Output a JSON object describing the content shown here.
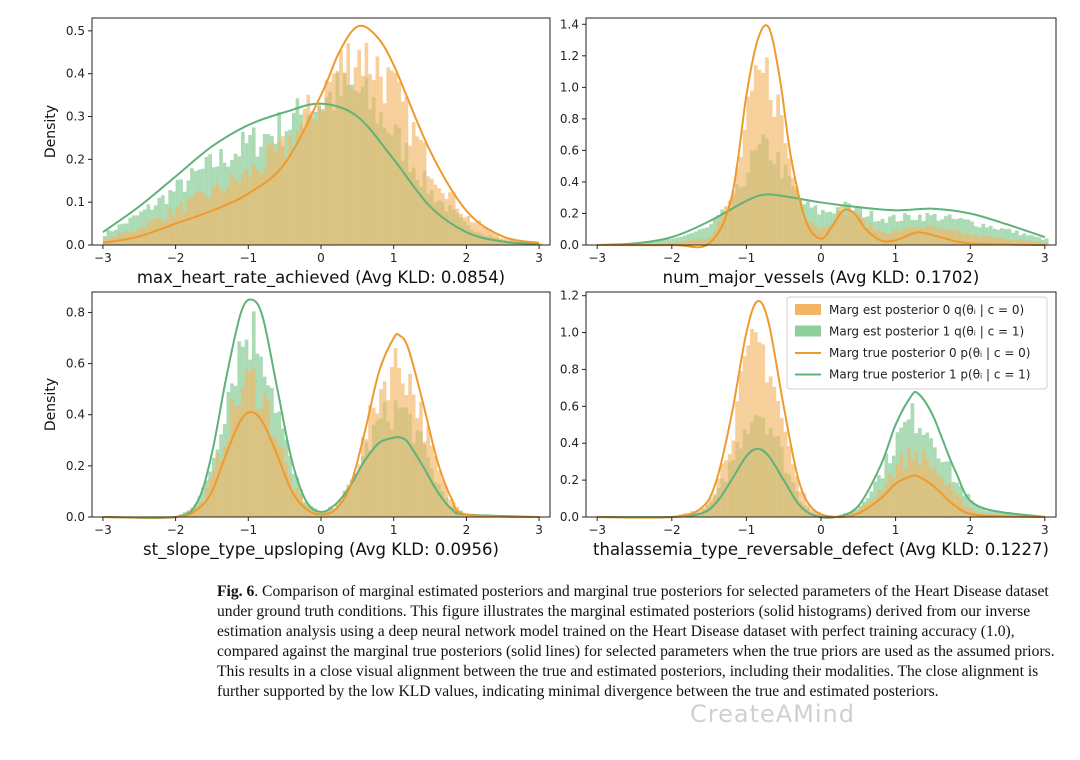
{
  "colors": {
    "orange_line": "#ef9a2d",
    "green_line": "#5fb27a",
    "orange_hist": "#f3b565",
    "green_hist": "#8fcf9c"
  },
  "legend": [
    {
      "label": "Marg est posterior 0 q(θᵢ | c = 0)",
      "kind": "patch",
      "color_key": "orange_hist"
    },
    {
      "label": "Marg est posterior 1 q(θᵢ | c = 1)",
      "kind": "patch",
      "color_key": "green_hist"
    },
    {
      "label": "Marg true posterior 0 p(θᵢ | c = 0)",
      "kind": "line",
      "color_key": "orange_line"
    },
    {
      "label": "Marg true posterior 1 p(θᵢ | c = 1)",
      "kind": "line",
      "color_key": "green_line"
    }
  ],
  "chart_data": [
    {
      "type": "line",
      "xlabel": "max_heart_rate_achieved (Avg KLD: 0.0854)",
      "ylabel": "Density",
      "xlim": [
        -3.15,
        3.15
      ],
      "ylim": [
        0,
        0.53
      ],
      "xticks": [
        "−3",
        "−2",
        "−1",
        "0",
        "1",
        "2",
        "3"
      ],
      "yticks": [
        "0.0",
        "0.1",
        "0.2",
        "0.3",
        "0.4",
        "0.5"
      ],
      "series": [
        {
          "color_key": "orange_line",
          "x": [
            -3.0,
            -2.5,
            -2.0,
            -1.5,
            -1.0,
            -0.5,
            0.0,
            0.25,
            0.5,
            0.75,
            1.0,
            1.5,
            2.0,
            2.5,
            3.0
          ],
          "y": [
            0.005,
            0.02,
            0.05,
            0.08,
            0.12,
            0.19,
            0.35,
            0.45,
            0.51,
            0.49,
            0.42,
            0.22,
            0.08,
            0.02,
            0.005
          ]
        },
        {
          "color_key": "green_line",
          "x": [
            -3.0,
            -2.5,
            -2.0,
            -1.5,
            -1.0,
            -0.5,
            0.0,
            0.5,
            1.0,
            1.5,
            2.0,
            2.5,
            3.0
          ],
          "y": [
            0.03,
            0.09,
            0.16,
            0.23,
            0.28,
            0.31,
            0.33,
            0.3,
            0.2,
            0.09,
            0.03,
            0.008,
            0.002
          ]
        }
      ]
    },
    {
      "type": "line",
      "xlabel": "num_major_vessels (Avg KLD: 0.1702)",
      "ylabel": "",
      "xlim": [
        -3.15,
        3.15
      ],
      "ylim": [
        0,
        1.44
      ],
      "xticks": [
        "−3",
        "−2",
        "−1",
        "0",
        "1",
        "2",
        "3"
      ],
      "yticks": [
        "0.0",
        "0.2",
        "0.4",
        "0.6",
        "0.8",
        "1.0",
        "1.2",
        "1.4"
      ],
      "series": [
        {
          "color_key": "orange_line",
          "x": [
            -3.0,
            -2.0,
            -1.5,
            -1.2,
            -1.0,
            -0.85,
            -0.7,
            -0.55,
            -0.4,
            -0.2,
            0.0,
            0.15,
            0.3,
            0.45,
            0.6,
            0.8,
            1.0,
            1.3,
            1.6,
            2.0,
            3.0
          ],
          "y": [
            0.0,
            0.0,
            0.01,
            0.3,
            0.95,
            1.3,
            1.38,
            1.05,
            0.55,
            0.15,
            0.04,
            0.12,
            0.22,
            0.2,
            0.1,
            0.03,
            0.03,
            0.08,
            0.05,
            0.01,
            0.0
          ]
        },
        {
          "color_key": "green_line",
          "x": [
            -3.0,
            -2.5,
            -2.0,
            -1.5,
            -1.0,
            -0.75,
            -0.5,
            0.0,
            0.5,
            1.0,
            1.5,
            2.0,
            2.5,
            3.0
          ],
          "y": [
            0.0,
            0.01,
            0.05,
            0.15,
            0.28,
            0.32,
            0.31,
            0.27,
            0.24,
            0.22,
            0.23,
            0.2,
            0.13,
            0.05
          ]
        }
      ]
    },
    {
      "type": "line",
      "xlabel": "st_slope_type_upsloping (Avg KLD: 0.0956)",
      "ylabel": "Density",
      "xlim": [
        -3.15,
        3.15
      ],
      "ylim": [
        0,
        0.88
      ],
      "xticks": [
        "−3",
        "−2",
        "−1",
        "0",
        "1",
        "2",
        "3"
      ],
      "yticks": [
        "0.0",
        "0.2",
        "0.4",
        "0.6",
        "0.8"
      ],
      "series": [
        {
          "color_key": "orange_line",
          "x": [
            -3.0,
            -2.0,
            -1.7,
            -1.5,
            -1.3,
            -1.1,
            -0.95,
            -0.8,
            -0.6,
            -0.4,
            -0.2,
            0.0,
            0.2,
            0.4,
            0.6,
            0.8,
            1.0,
            1.08,
            1.2,
            1.4,
            1.6,
            1.8,
            2.0,
            3.0
          ],
          "y": [
            0.0,
            0.0,
            0.03,
            0.1,
            0.25,
            0.38,
            0.41,
            0.37,
            0.24,
            0.1,
            0.03,
            0.01,
            0.03,
            0.12,
            0.33,
            0.57,
            0.7,
            0.71,
            0.66,
            0.45,
            0.22,
            0.07,
            0.01,
            0.0
          ]
        },
        {
          "color_key": "green_line",
          "x": [
            -3.0,
            -2.0,
            -1.7,
            -1.5,
            -1.3,
            -1.1,
            -0.95,
            -0.8,
            -0.6,
            -0.4,
            -0.2,
            0.0,
            0.2,
            0.4,
            0.6,
            0.8,
            1.0,
            1.1,
            1.2,
            1.4,
            1.6,
            1.8,
            2.0,
            3.0
          ],
          "y": [
            0.0,
            0.0,
            0.06,
            0.25,
            0.55,
            0.8,
            0.85,
            0.78,
            0.5,
            0.22,
            0.06,
            0.02,
            0.05,
            0.12,
            0.22,
            0.29,
            0.31,
            0.31,
            0.29,
            0.2,
            0.1,
            0.03,
            0.01,
            0.0
          ]
        }
      ]
    },
    {
      "type": "line",
      "xlabel": "thalassemia_type_reversable_defect (Avg KLD: 0.1227)",
      "ylabel": "",
      "xlim": [
        -3.15,
        3.15
      ],
      "ylim": [
        0,
        1.22
      ],
      "xticks": [
        "−3",
        "−2",
        "−1",
        "0",
        "1",
        "2",
        "3"
      ],
      "yticks": [
        "0.0",
        "0.2",
        "0.4",
        "0.6",
        "0.8",
        "1.0",
        "1.2"
      ],
      "series": [
        {
          "color_key": "orange_line",
          "x": [
            -3.0,
            -2.0,
            -1.6,
            -1.4,
            -1.2,
            -1.0,
            -0.85,
            -0.7,
            -0.5,
            -0.3,
            -0.1,
            0.2,
            0.5,
            0.8,
            1.0,
            1.2,
            1.3,
            1.5,
            1.8,
            2.1,
            3.0
          ],
          "y": [
            0.0,
            0.0,
            0.05,
            0.2,
            0.55,
            1.0,
            1.17,
            1.05,
            0.6,
            0.2,
            0.04,
            0.0,
            0.02,
            0.1,
            0.18,
            0.22,
            0.22,
            0.17,
            0.06,
            0.01,
            0.0
          ]
        },
        {
          "color_key": "green_line",
          "x": [
            -3.0,
            -2.0,
            -1.6,
            -1.4,
            -1.2,
            -1.0,
            -0.85,
            -0.7,
            -0.5,
            -0.3,
            -0.1,
            0.2,
            0.5,
            0.8,
            1.0,
            1.2,
            1.3,
            1.5,
            1.8,
            2.1,
            3.0
          ],
          "y": [
            0.0,
            0.0,
            0.02,
            0.08,
            0.2,
            0.33,
            0.37,
            0.33,
            0.2,
            0.07,
            0.01,
            0.0,
            0.06,
            0.28,
            0.5,
            0.65,
            0.67,
            0.55,
            0.25,
            0.06,
            0.0
          ]
        }
      ]
    }
  ],
  "caption": {
    "label": "Fig. 6",
    "text": ".  Comparison of marginal estimated posteriors and marginal true posteriors for selected parameters of the Heart Disease dataset under ground truth conditions. This figure illustrates the marginal estimated posteriors (solid histograms) derived from our inverse estimation analysis using a deep neural network model trained on the Heart Disease dataset with perfect training accuracy (1.0), compared against the marginal true posteriors (solid lines) for selected parameters when the true priors are used as the assumed priors. This results in a close visual alignment between the true and estimated posteriors, including their modalities. The close alignment is further supported by the low KLD values, indicating minimal divergence between the true and estimated posteriors."
  },
  "watermark": "CreateAMind"
}
